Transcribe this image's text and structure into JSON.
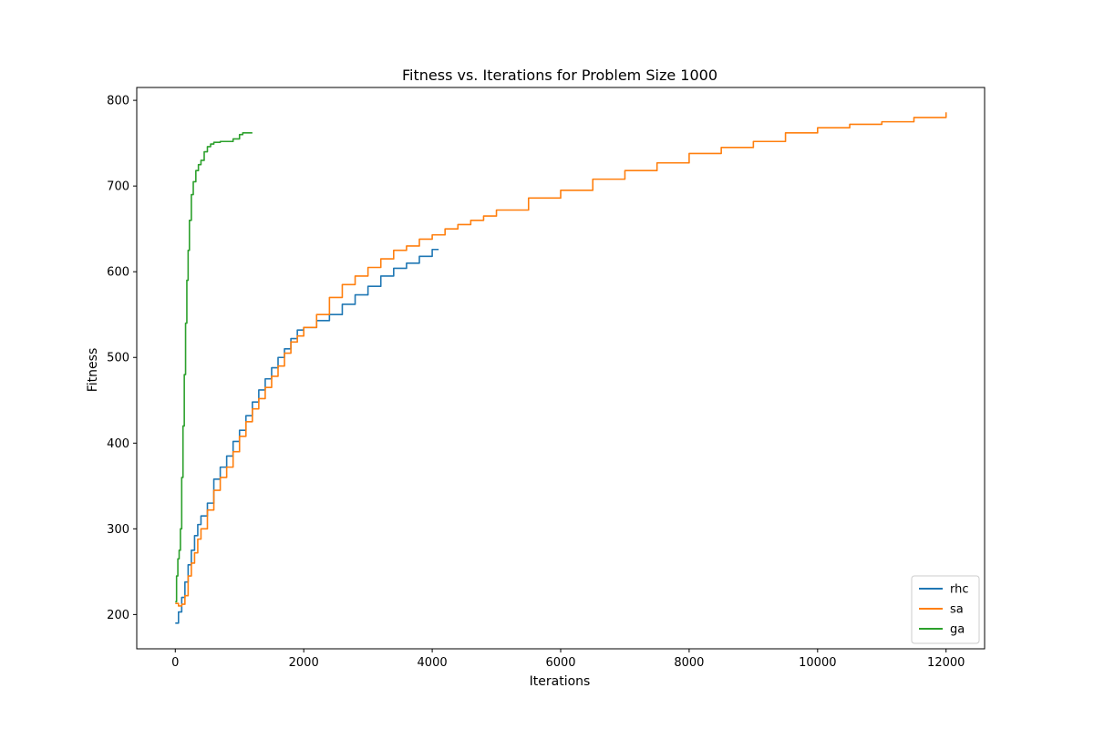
{
  "chart_data": {
    "type": "line",
    "title": "Fitness vs. Iterations for Problem Size 1000",
    "xlabel": "Iterations",
    "ylabel": "Fitness",
    "xlim": [
      -600,
      12600
    ],
    "ylim": [
      160,
      815
    ],
    "xticks": [
      0,
      2000,
      4000,
      6000,
      8000,
      10000,
      12000
    ],
    "yticks": [
      200,
      300,
      400,
      500,
      600,
      700,
      800
    ],
    "grid": false,
    "legend_position": "lower-right",
    "series": [
      {
        "name": "rhc",
        "color": "#1f77b4",
        "x": [
          0,
          50,
          100,
          150,
          200,
          250,
          300,
          350,
          400,
          500,
          600,
          700,
          800,
          900,
          1000,
          1100,
          1200,
          1300,
          1400,
          1500,
          1600,
          1700,
          1800,
          1900,
          2000,
          2200,
          2400,
          2600,
          2800,
          3000,
          3200,
          3400,
          3600,
          3800,
          4000,
          4100
        ],
        "y": [
          190,
          203,
          220,
          238,
          258,
          275,
          292,
          305,
          315,
          330,
          358,
          372,
          385,
          402,
          415,
          432,
          448,
          462,
          475,
          488,
          500,
          510,
          522,
          532,
          535,
          543,
          550,
          562,
          573,
          583,
          595,
          604,
          610,
          618,
          626,
          626
        ]
      },
      {
        "name": "sa",
        "color": "#ff7f0e",
        "x": [
          0,
          50,
          100,
          150,
          200,
          250,
          300,
          350,
          400,
          500,
          600,
          700,
          800,
          900,
          1000,
          1100,
          1200,
          1300,
          1400,
          1500,
          1600,
          1700,
          1800,
          1900,
          2000,
          2200,
          2400,
          2600,
          2800,
          3000,
          3200,
          3400,
          3600,
          3800,
          4000,
          4200,
          4400,
          4600,
          4800,
          5000,
          5500,
          6000,
          6500,
          7000,
          7500,
          8000,
          8500,
          9000,
          9500,
          10000,
          10500,
          11000,
          11500,
          12000
        ],
        "y": [
          213,
          210,
          212,
          222,
          245,
          260,
          272,
          288,
          300,
          322,
          345,
          360,
          372,
          390,
          408,
          425,
          440,
          452,
          465,
          478,
          490,
          505,
          518,
          525,
          535,
          550,
          570,
          585,
          595,
          605,
          615,
          625,
          630,
          638,
          643,
          650,
          655,
          660,
          665,
          672,
          686,
          695,
          708,
          718,
          727,
          738,
          745,
          752,
          762,
          768,
          772,
          775,
          780,
          786
        ]
      },
      {
        "name": "ga",
        "color": "#2ca02c",
        "x": [
          0,
          20,
          40,
          60,
          80,
          100,
          120,
          140,
          160,
          180,
          200,
          220,
          250,
          280,
          320,
          360,
          400,
          450,
          500,
          550,
          600,
          700,
          800,
          900,
          1000,
          1050,
          1100,
          1150,
          1200
        ],
        "y": [
          215,
          245,
          265,
          275,
          300,
          360,
          420,
          480,
          540,
          590,
          625,
          660,
          690,
          705,
          718,
          725,
          730,
          740,
          746,
          749,
          751,
          752,
          752,
          755,
          760,
          762,
          762,
          762,
          762
        ]
      }
    ]
  }
}
